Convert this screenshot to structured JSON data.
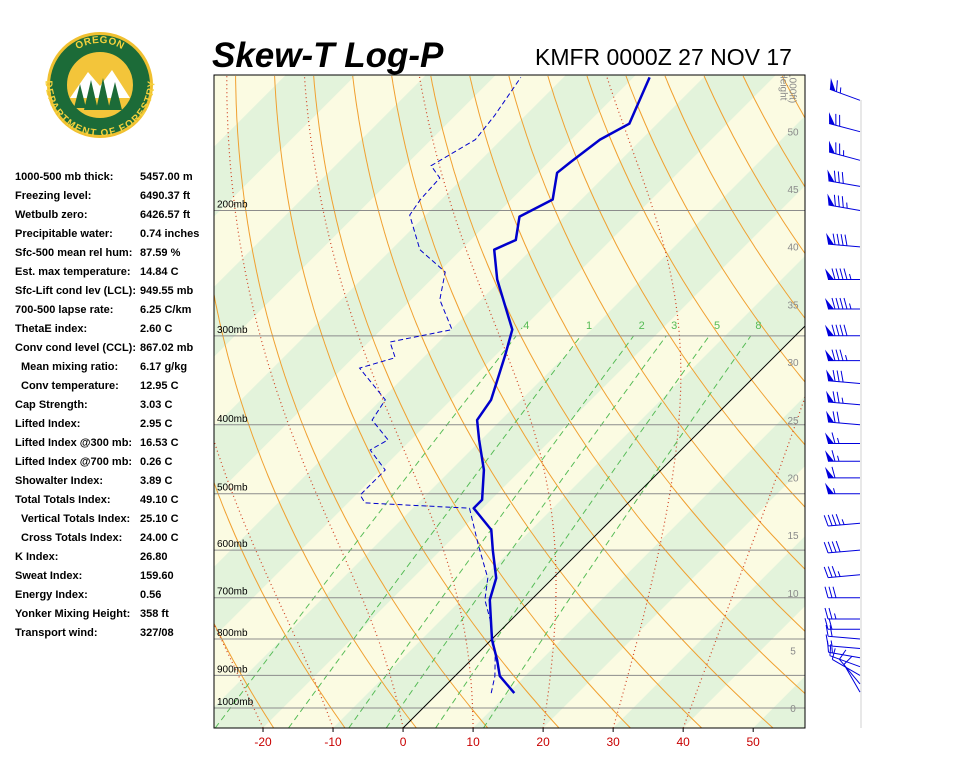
{
  "header": {
    "title": "Skew-T Log-P",
    "station": "KMFR 0000Z 27 NOV 17"
  },
  "logo": {
    "top": "OREGON",
    "bottom": "DEPARTMENT OF FORESTRY"
  },
  "stats": [
    [
      "1000-500 mb thick:",
      "5457.00 m"
    ],
    [
      "Freezing level:",
      "6490.37 ft"
    ],
    [
      "Wetbulb zero:",
      "6426.57 ft"
    ],
    [
      "Precipitable water:",
      "0.74 inches"
    ],
    [
      "Sfc-500 mean rel hum:",
      "87.59 %"
    ],
    [
      "Est. max temperature:",
      "14.84 C"
    ],
    [
      "Sfc-Lift cond lev (LCL):",
      "949.55 mb"
    ],
    [
      "700-500 lapse rate:",
      "6.25 C/km"
    ],
    [
      "ThetaE index:",
      "2.60 C"
    ],
    [
      "Conv cond level (CCL):",
      "867.02 mb"
    ],
    [
      "Mean mixing ratio:",
      "6.17 g/kg"
    ],
    [
      "Conv temperature:",
      "12.95 C"
    ],
    [
      "Cap Strength:",
      "3.03 C"
    ],
    [
      "Lifted Index:",
      "2.95 C"
    ],
    [
      "Lifted Index @300 mb:",
      "16.53 C"
    ],
    [
      "Lifted Index @700 mb:",
      "0.26 C"
    ],
    [
      "Showalter Index:",
      "3.89 C"
    ],
    [
      "Total Totals Index:",
      "49.10 C"
    ],
    [
      "Vertical Totals Index:",
      "25.10 C"
    ],
    [
      "Cross Totals Index:",
      "24.00 C"
    ],
    [
      "K Index:",
      "26.80"
    ],
    [
      "Sweat Index:",
      "159.60"
    ],
    [
      "Energy Index:",
      "0.56"
    ],
    [
      "Yonker Mixing Height:",
      "358 ft"
    ],
    [
      "Transport wind:",
      "327/08"
    ]
  ],
  "chart_data": {
    "type": "skewt",
    "log_scale": true,
    "xlim": [
      -27,
      57.4
    ],
    "xticks": [
      -20,
      -10,
      0,
      10,
      20,
      30,
      40,
      50
    ],
    "ylim": [
      1067,
      129
    ],
    "yticks": [
      {
        "value": 200,
        "label": "200mb"
      },
      {
        "value": 300,
        "label": "300mb"
      },
      {
        "value": 400,
        "label": "400mb"
      },
      {
        "value": 500,
        "label": "500mb"
      },
      {
        "value": 600,
        "label": "600mb"
      },
      {
        "value": 700,
        "label": "700mb"
      },
      {
        "value": 800,
        "label": "800mb"
      },
      {
        "value": 900,
        "label": "900mb"
      },
      {
        "value": 1000,
        "label": "1000mb"
      }
    ],
    "y2_label": [
      "Height",
      "(1000ft)"
    ],
    "y2lim": [
      -1.6,
      55
    ],
    "y2ticks": [
      0,
      5,
      10,
      15,
      20,
      25,
      30,
      35,
      40,
      45,
      50
    ],
    "mixing_ratios": [
      {
        "value": 0.4,
        "label": ".4"
      },
      1,
      2,
      3,
      5,
      8
    ],
    "temperature": {
      "color": "#0000cc",
      "pressure": [
        953,
        902,
        856,
        802,
        705,
        657,
        600,
        562,
        524,
        510,
        463,
        420,
        394,
        369,
        320,
        294,
        250,
        227,
        220,
        204,
        193,
        177,
        171,
        159,
        151,
        130
      ],
      "values": [
        10.9,
        6.4,
        3.7,
        0.1,
        -5.9,
        -8.1,
        -12.6,
        -15.7,
        -21.3,
        -21.3,
        -25.3,
        -30.3,
        -33.4,
        -34.3,
        -38.6,
        -41.3,
        -50.6,
        -55.3,
        -53.6,
        -56.4,
        -54.1,
        -57.3,
        -56.9,
        -55.9,
        -54.0,
        -57.7
      ]
    },
    "dewpoint": {
      "color": "#0000cc",
      "pressure": [
        953,
        902,
        842,
        752,
        705,
        657,
        590,
        524,
        515,
        502,
        463,
        434,
        420,
        394,
        369,
        333,
        322,
        306,
        294,
        267,
        244,
        227,
        203,
        193,
        180,
        173,
        159,
        147,
        130
      ],
      "values": [
        7.6,
        5.7,
        2.7,
        -3.0,
        -6.6,
        -9.3,
        -15.4,
        -21.9,
        -37.6,
        -39.4,
        -39.4,
        -44.4,
        -43.3,
        -48.4,
        -49.4,
        -57.6,
        -54.0,
        -57.0,
        -49.9,
        -55.9,
        -59.1,
        -65.9,
        -72.3,
        -73.0,
        -73.3,
        -76.3,
        -73.7,
        -74.4,
        -76.1
      ]
    },
    "winds": {
      "color": "#0000dd",
      "pressure": [
        950,
        925,
        900,
        875,
        850,
        825,
        800,
        775,
        750,
        700,
        650,
        600,
        550,
        500,
        475,
        450,
        425,
        400,
        375,
        350,
        325,
        300,
        275,
        250,
        225,
        200,
        185,
        170,
        155,
        140
      ],
      "direction": [
        330,
        320,
        300,
        290,
        280,
        275,
        275,
        270,
        270,
        270,
        265,
        265,
        265,
        270,
        270,
        270,
        270,
        275,
        275,
        275,
        270,
        270,
        270,
        270,
        275,
        280,
        280,
        285,
        285,
        290
      ],
      "speed": [
        8,
        10,
        10,
        12,
        15,
        15,
        20,
        20,
        25,
        30,
        35,
        40,
        45,
        55,
        60,
        65,
        65,
        70,
        75,
        80,
        85,
        90,
        95,
        95,
        90,
        85,
        80,
        75,
        70,
        65
      ]
    }
  }
}
